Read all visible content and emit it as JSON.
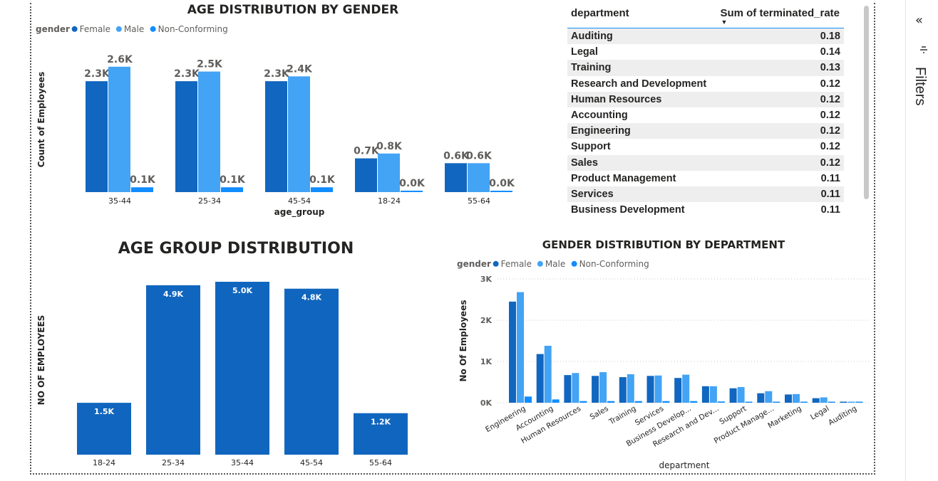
{
  "colors": {
    "female": "#1166BF",
    "male": "#43A3F5",
    "nonconforming": "#118DFF",
    "bar": "#1066BE"
  },
  "chart_data": [
    {
      "id": "age_gender",
      "type": "bar",
      "title": "AGE DISTRIBUTION BY GENDER",
      "legend_title": "gender",
      "legend_position": "top-left",
      "xlabel": "age_group",
      "ylabel": "Count of Employees",
      "categories": [
        "35-44",
        "25-34",
        "45-54",
        "18-24",
        "55-64"
      ],
      "series": [
        {
          "name": "Female",
          "values": [
            2300,
            2300,
            2300,
            700,
            600
          ],
          "labels": [
            "2.3K",
            "2.3K",
            "2.3K",
            "0.7K",
            "0.6K"
          ]
        },
        {
          "name": "Male",
          "values": [
            2600,
            2500,
            2400,
            800,
            600
          ],
          "labels": [
            "2.6K",
            "2.5K",
            "2.4K",
            "0.8K",
            "0.6K"
          ]
        },
        {
          "name": "Non-Conforming",
          "values": [
            100,
            100,
            100,
            30,
            20
          ],
          "labels": [
            "0.1K",
            "0.1K",
            "0.1K",
            "0.0K",
            "0.0K"
          ]
        }
      ],
      "ylim": [
        0,
        2700
      ],
      "grid": false
    },
    {
      "id": "age_group",
      "type": "bar",
      "title": "AGE GROUP DISTRIBUTION",
      "ylabel": "NO OF EMPLOYEES",
      "categories": [
        "18-24",
        "25-34",
        "35-44",
        "45-54",
        "55-64"
      ],
      "values": [
        1500,
        4900,
        5000,
        4800,
        1200
      ],
      "labels": [
        "1.5K",
        "4.9K",
        "5.0K",
        "4.8K",
        "1.2K"
      ],
      "ylim": [
        0,
        5000
      ],
      "grid": false
    },
    {
      "id": "gender_dept",
      "type": "bar",
      "title": "GENDER DISTRIBUTION BY DEPARTMENT",
      "legend_title": "gender",
      "legend_position": "top-left",
      "xlabel": "department",
      "ylabel": "No Of Employees",
      "categories": [
        "Engineering",
        "Accounting",
        "Human Resources",
        "Sales",
        "Training",
        "Services",
        "Business Develop...",
        "Research and Dev...",
        "Support",
        "Product Manage...",
        "Marketing",
        "Legal",
        "Auditing"
      ],
      "series": [
        {
          "name": "Female",
          "values": [
            2450,
            1180,
            670,
            650,
            620,
            650,
            600,
            400,
            350,
            230,
            200,
            110,
            20
          ]
        },
        {
          "name": "Male",
          "values": [
            2680,
            1380,
            720,
            740,
            690,
            660,
            680,
            400,
            380,
            280,
            210,
            130,
            20
          ]
        },
        {
          "name": "Non-Conforming",
          "values": [
            150,
            80,
            40,
            40,
            40,
            40,
            40,
            30,
            20,
            20,
            15,
            10,
            5
          ]
        }
      ],
      "yticks": [
        0,
        1000,
        2000,
        3000
      ],
      "ytick_labels": [
        "0K",
        "1K",
        "2K",
        "3K"
      ],
      "ylim": [
        0,
        3000
      ],
      "grid": true
    }
  ],
  "table": {
    "headers": [
      "department",
      "Sum of terminated_rate"
    ],
    "rows": [
      [
        "Auditing",
        "0.18"
      ],
      [
        "Legal",
        "0.14"
      ],
      [
        "Training",
        "0.13"
      ],
      [
        "Research and Development",
        "0.12"
      ],
      [
        "Human Resources",
        "0.12"
      ],
      [
        "Accounting",
        "0.12"
      ],
      [
        "Engineering",
        "0.12"
      ],
      [
        "Support",
        "0.12"
      ],
      [
        "Sales",
        "0.12"
      ],
      [
        "Product Management",
        "0.11"
      ],
      [
        "Services",
        "0.11"
      ],
      [
        "Business Development",
        "0.11"
      ]
    ]
  },
  "filters": {
    "label": "Filters",
    "collapse_icon": "«"
  }
}
